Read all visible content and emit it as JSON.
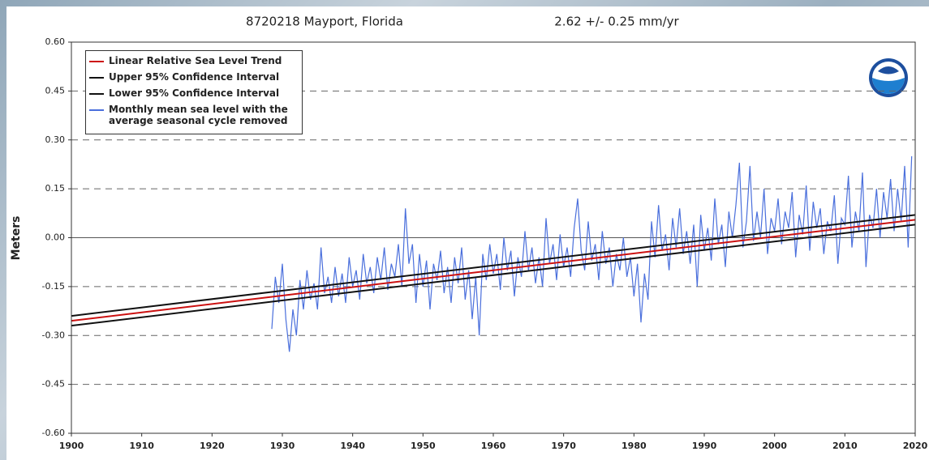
{
  "chart_data": {
    "type": "line",
    "title": "8720218 Mayport, Florida",
    "subtitle": "2.62 +/-  0.25 mm/yr",
    "y_label": "Meters",
    "xlim": [
      1900,
      2020
    ],
    "ylim": [
      -0.6,
      0.6
    ],
    "xticks": [
      1900,
      1910,
      1920,
      1930,
      1940,
      1950,
      1960,
      1970,
      1980,
      1990,
      2000,
      2010,
      2020
    ],
    "yticks": [
      {
        "value": 0.6,
        "label": "0.60"
      },
      {
        "value": 0.45,
        "label": "0.45"
      },
      {
        "value": 0.3,
        "label": "0.30"
      },
      {
        "value": 0.15,
        "label": "0.15"
      },
      {
        "value": 0,
        "label": "0.00"
      },
      {
        "value": -0.15,
        "label": "-0.15"
      },
      {
        "value": -0.3,
        "label": "-0.30"
      },
      {
        "value": -0.45,
        "label": "-0.45"
      },
      {
        "value": -0.6,
        "label": "-0.60"
      }
    ],
    "grid": true,
    "legend": "upper left",
    "series": [
      {
        "name": "Linear Relative Sea Level Trend",
        "color": "#cc1111",
        "x": [
          1900,
          2020
        ],
        "values": [
          -0.255,
          0.055
        ]
      },
      {
        "name": "Upper 95% Confidence Interval",
        "color": "#111111",
        "x": [
          1900,
          2020
        ],
        "values": [
          -0.24,
          0.07
        ]
      },
      {
        "name": "Lower 95% Confidence Interval",
        "color": "#111111",
        "x": [
          1900,
          2020
        ],
        "values": [
          -0.27,
          0.04
        ]
      },
      {
        "name": "Monthly mean sea level with the average seasonal cycle removed",
        "color": "#4a6fdc",
        "x": [
          1928.5,
          1929,
          1929.5,
          1930,
          1930.5,
          1931,
          1931.5,
          1932,
          1932.5,
          1933,
          1933.5,
          1934,
          1934.5,
          1935,
          1935.5,
          1936,
          1936.5,
          1937,
          1937.5,
          1938,
          1938.5,
          1939,
          1939.5,
          1940,
          1940.5,
          1941,
          1941.5,
          1942,
          1942.5,
          1943,
          1943.5,
          1944,
          1944.5,
          1945,
          1945.5,
          1946,
          1946.5,
          1947,
          1947.5,
          1948,
          1948.5,
          1949,
          1949.5,
          1950,
          1950.5,
          1951,
          1951.5,
          1952,
          1952.5,
          1953,
          1953.5,
          1954,
          1954.5,
          1955,
          1955.5,
          1956,
          1956.5,
          1957,
          1957.5,
          1958,
          1958.5,
          1959,
          1959.5,
          1960,
          1960.5,
          1961,
          1961.5,
          1962,
          1962.5,
          1963,
          1963.5,
          1964,
          1964.5,
          1965,
          1965.5,
          1966,
          1966.5,
          1967,
          1967.5,
          1968,
          1968.5,
          1969,
          1969.5,
          1970,
          1970.5,
          1971,
          1971.5,
          1972,
          1972.5,
          1973,
          1973.5,
          1974,
          1974.5,
          1975,
          1975.5,
          1976,
          1976.5,
          1977,
          1977.5,
          1978,
          1978.5,
          1979,
          1979.5,
          1980,
          1980.5,
          1981,
          1981.5,
          1982,
          1982.5,
          1983,
          1983.5,
          1984,
          1984.5,
          1985,
          1985.5,
          1986,
          1986.5,
          1987,
          1987.5,
          1988,
          1988.5,
          1989,
          1989.5,
          1990,
          1990.5,
          1991,
          1991.5,
          1992,
          1992.5,
          1993,
          1993.5,
          1994,
          1994.5,
          1995,
          1995.5,
          1996,
          1996.5,
          1997,
          1997.5,
          1998,
          1998.5,
          1999,
          1999.5,
          2000,
          2000.5,
          2001,
          2001.5,
          2002,
          2002.5,
          2003,
          2003.5,
          2004,
          2004.5,
          2005,
          2005.5,
          2006,
          2006.5,
          2007,
          2007.5,
          2008,
          2008.5,
          2009,
          2009.5,
          2010,
          2010.5,
          2011,
          2011.5,
          2012,
          2012.5,
          2013,
          2013.5,
          2014,
          2014.5,
          2015,
          2015.5,
          2016,
          2016.5,
          2017,
          2017.5,
          2018,
          2018.5,
          2019,
          2019.5
        ],
        "values": [
          -0.28,
          -0.12,
          -0.2,
          -0.08,
          -0.25,
          -0.35,
          -0.22,
          -0.3,
          -0.13,
          -0.22,
          -0.1,
          -0.19,
          -0.14,
          -0.22,
          -0.03,
          -0.17,
          -0.12,
          -0.2,
          -0.09,
          -0.18,
          -0.11,
          -0.2,
          -0.06,
          -0.15,
          -0.1,
          -0.19,
          -0.05,
          -0.14,
          -0.09,
          -0.17,
          -0.06,
          -0.13,
          -0.03,
          -0.16,
          -0.08,
          -0.12,
          -0.02,
          -0.15,
          0.09,
          -0.08,
          -0.02,
          -0.2,
          -0.05,
          -0.15,
          -0.07,
          -0.22,
          -0.08,
          -0.13,
          -0.04,
          -0.17,
          -0.09,
          -0.2,
          -0.06,
          -0.14,
          -0.03,
          -0.19,
          -0.1,
          -0.25,
          -0.12,
          -0.3,
          -0.05,
          -0.13,
          -0.02,
          -0.11,
          -0.05,
          -0.16,
          0.0,
          -0.1,
          -0.04,
          -0.18,
          -0.06,
          -0.12,
          0.02,
          -0.1,
          -0.03,
          -0.14,
          -0.06,
          -0.15,
          0.06,
          -0.08,
          -0.02,
          -0.13,
          0.01,
          -0.09,
          -0.03,
          -0.12,
          0.03,
          0.12,
          -0.04,
          -0.1,
          0.05,
          -0.07,
          -0.02,
          -0.13,
          0.02,
          -0.08,
          -0.03,
          -0.15,
          -0.05,
          -0.1,
          0.0,
          -0.12,
          -0.06,
          -0.18,
          -0.08,
          -0.26,
          -0.11,
          -0.19,
          0.05,
          -0.06,
          0.1,
          -0.04,
          0.01,
          -0.1,
          0.06,
          -0.03,
          0.09,
          -0.05,
          0.02,
          -0.08,
          0.04,
          -0.15,
          0.07,
          -0.04,
          0.03,
          -0.07,
          0.12,
          -0.02,
          0.04,
          -0.09,
          0.08,
          0.0,
          0.1,
          0.23,
          -0.03,
          0.05,
          0.22,
          -0.01,
          0.08,
          0.0,
          0.15,
          -0.05,
          0.06,
          0.02,
          0.12,
          -0.02,
          0.08,
          0.03,
          0.14,
          -0.06,
          0.07,
          0.01,
          0.16,
          -0.04,
          0.11,
          0.03,
          0.09,
          -0.05,
          0.05,
          0.02,
          0.13,
          -0.08,
          0.06,
          0.04,
          0.19,
          -0.03,
          0.08,
          0.02,
          0.2,
          -0.09,
          0.07,
          0.03,
          0.15,
          0.0,
          0.14,
          0.06,
          0.18,
          0.02,
          0.15,
          0.05,
          0.22,
          -0.03,
          0.25
        ]
      }
    ]
  }
}
